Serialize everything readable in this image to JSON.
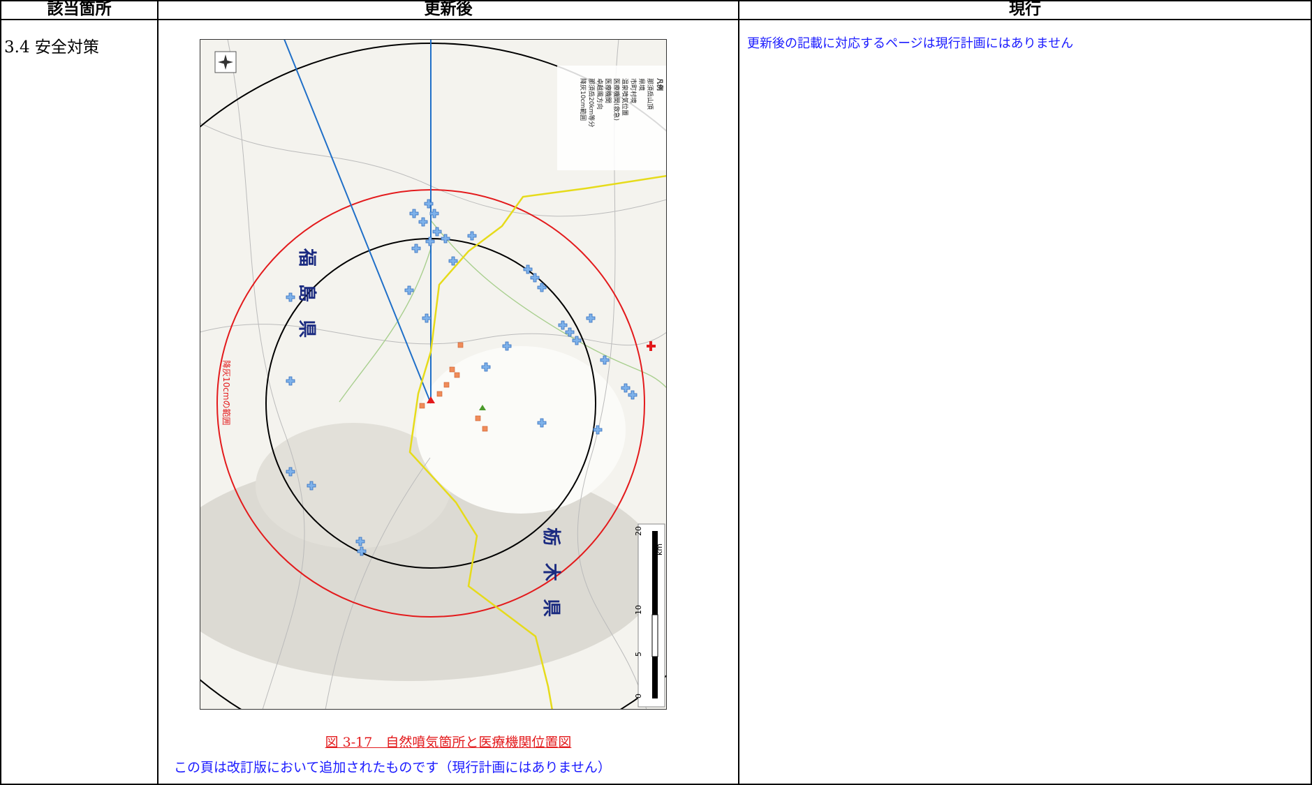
{
  "header": {
    "columns": [
      "該当箇所",
      "更新後",
      "現行"
    ]
  },
  "row": {
    "section": "3.4 安全対策",
    "figure": {
      "map_labels": {
        "fukushima": "福 島 県",
        "tochigi": "栃 木 県",
        "ash_range": "降灰10cmの範囲"
      },
      "legend": {
        "title": "凡例",
        "items": [
          "那須岳山頂",
          "県境",
          "市町村境",
          "温泉噴気位置",
          "医療機関(救急)",
          "医療機関",
          "卓越風方向",
          "那須岳20km等分",
          "降灰10cm範囲"
        ]
      },
      "scale": {
        "labels": [
          "0",
          "5",
          "10",
          "20"
        ],
        "unit": "km"
      },
      "caption": "図 3-17　自然噴気箇所と医療機関位置図"
    },
    "note": "この頁は改訂版において追加されたものです（現行計画にはありません）",
    "current": "更新後の記載に対応するページは現行計画にはありません"
  }
}
